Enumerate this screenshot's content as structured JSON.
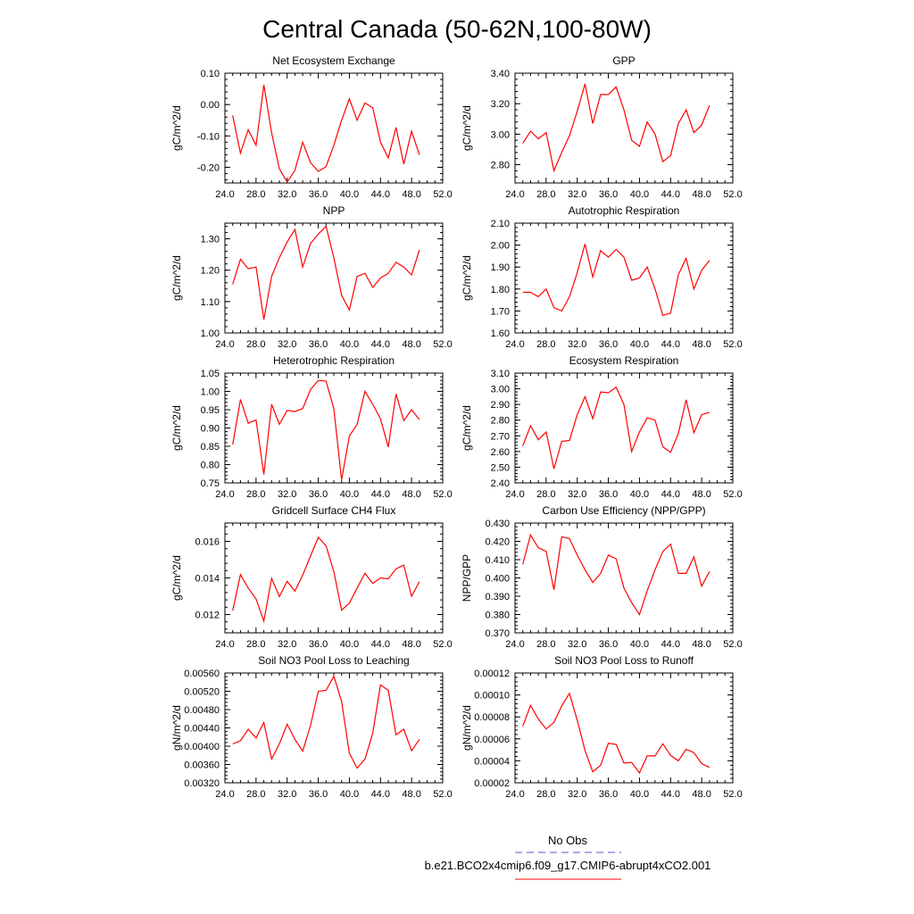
{
  "title": "Central Canada (50-62N,100-80W)",
  "legend": {
    "entries": [
      {
        "label": "No Obs",
        "color": "#5555cc",
        "style": "dashed"
      },
      {
        "label": "b.e21.BCO2x4cmip6.f09_g17.CMIP6-abrupt4xCO2.001",
        "color": "#ff0000",
        "style": "solid"
      }
    ]
  },
  "chart_data": [
    {
      "type": "line",
      "title": "Net Ecosystem Exchange",
      "ylabel": "gC/m^2/d",
      "xlim": [
        24,
        52
      ],
      "ylim": [
        -0.25,
        0.1
      ],
      "xticks": [
        "24.0",
        "28.0",
        "32.0",
        "36.0",
        "40.0",
        "44.0",
        "48.0",
        "52.0"
      ],
      "yticks": [
        {
          "v": 0.1,
          "t": "0.10"
        },
        {
          "v": 0.0,
          "t": "0.00"
        },
        {
          "v": -0.1,
          "t": "-0.10"
        },
        {
          "v": -0.2,
          "t": "-0.20"
        }
      ],
      "series": [
        {
          "color": "#ff0000",
          "x": [
            25,
            26,
            27,
            28,
            29,
            30,
            31,
            32,
            33,
            34,
            35,
            36,
            37,
            38,
            39,
            40,
            41,
            42,
            43,
            44,
            45,
            46,
            47,
            48,
            49
          ],
          "y": [
            -0.035,
            -0.155,
            -0.08,
            -0.13,
            0.063,
            -0.09,
            -0.205,
            -0.247,
            -0.21,
            -0.12,
            -0.185,
            -0.213,
            -0.198,
            -0.13,
            -0.05,
            0.018,
            -0.05,
            0.005,
            -0.01,
            -0.12,
            -0.17,
            -0.073,
            -0.19,
            -0.085,
            -0.16
          ]
        }
      ]
    },
    {
      "type": "line",
      "title": "GPP",
      "ylabel": "gC/m^2/d",
      "xlim": [
        24,
        52
      ],
      "ylim": [
        2.68,
        3.4
      ],
      "xticks": [
        "24.0",
        "28.0",
        "32.0",
        "36.0",
        "40.0",
        "44.0",
        "48.0",
        "52.0"
      ],
      "yticks": [
        {
          "v": 3.4,
          "t": "3.40"
        },
        {
          "v": 3.2,
          "t": "3.20"
        },
        {
          "v": 3.0,
          "t": "3.00"
        },
        {
          "v": 2.8,
          "t": "2.80"
        }
      ],
      "series": [
        {
          "color": "#ff0000",
          "x": [
            25,
            26,
            27,
            28,
            29,
            30,
            31,
            32,
            33,
            34,
            35,
            36,
            37,
            38,
            39,
            40,
            41,
            42,
            43,
            44,
            45,
            46,
            47,
            48,
            49
          ],
          "y": [
            2.94,
            3.02,
            2.97,
            3.01,
            2.76,
            2.88,
            2.99,
            3.15,
            3.33,
            3.07,
            3.26,
            3.26,
            3.31,
            3.16,
            2.96,
            2.92,
            3.08,
            3.0,
            2.82,
            2.86,
            3.07,
            3.16,
            3.01,
            3.06,
            3.19
          ]
        }
      ]
    },
    {
      "type": "line",
      "title": "NPP",
      "ylabel": "gC/m^2/d",
      "xlim": [
        24,
        52
      ],
      "ylim": [
        1.0,
        1.35
      ],
      "xticks": [
        "24.0",
        "28.0",
        "32.0",
        "36.0",
        "40.0",
        "44.0",
        "48.0",
        "52.0"
      ],
      "yticks": [
        {
          "v": 1.3,
          "t": "1.30"
        },
        {
          "v": 1.2,
          "t": "1.20"
        },
        {
          "v": 1.1,
          "t": "1.10"
        },
        {
          "v": 1.0,
          "t": "1.00"
        }
      ],
      "series": [
        {
          "color": "#ff0000",
          "x": [
            25,
            26,
            27,
            28,
            29,
            30,
            31,
            32,
            33,
            34,
            35,
            36,
            37,
            38,
            39,
            40,
            41,
            42,
            43,
            44,
            45,
            46,
            47,
            48,
            49
          ],
          "y": [
            1.155,
            1.235,
            1.205,
            1.21,
            1.042,
            1.18,
            1.24,
            1.29,
            1.33,
            1.21,
            1.285,
            1.315,
            1.34,
            1.24,
            1.12,
            1.073,
            1.18,
            1.19,
            1.145,
            1.175,
            1.19,
            1.225,
            1.21,
            1.185,
            1.265
          ]
        }
      ]
    },
    {
      "type": "line",
      "title": "Autotrophic Respiration",
      "ylabel": "gC/m^2/d",
      "xlim": [
        24,
        52
      ],
      "ylim": [
        1.6,
        2.1
      ],
      "xticks": [
        "24.0",
        "28.0",
        "32.0",
        "36.0",
        "40.0",
        "44.0",
        "48.0",
        "52.0"
      ],
      "yticks": [
        {
          "v": 2.1,
          "t": "2.10"
        },
        {
          "v": 2.0,
          "t": "2.00"
        },
        {
          "v": 1.9,
          "t": "1.90"
        },
        {
          "v": 1.8,
          "t": "1.80"
        },
        {
          "v": 1.7,
          "t": "1.70"
        },
        {
          "v": 1.6,
          "t": "1.60"
        }
      ],
      "series": [
        {
          "color": "#ff0000",
          "x": [
            25,
            26,
            27,
            28,
            29,
            30,
            31,
            32,
            33,
            34,
            35,
            36,
            37,
            38,
            39,
            40,
            41,
            42,
            43,
            44,
            45,
            46,
            47,
            48,
            49
          ],
          "y": [
            1.785,
            1.785,
            1.765,
            1.8,
            1.715,
            1.7,
            1.765,
            1.875,
            2.005,
            1.855,
            1.975,
            1.945,
            1.98,
            1.945,
            1.84,
            1.85,
            1.9,
            1.8,
            1.68,
            1.69,
            1.865,
            1.94,
            1.8,
            1.885,
            1.93
          ]
        }
      ]
    },
    {
      "type": "line",
      "title": "Heterotrophic Respiration",
      "ylabel": "gC/m^2/d",
      "xlim": [
        24,
        52
      ],
      "ylim": [
        0.75,
        1.05
      ],
      "xticks": [
        "24.0",
        "28.0",
        "32.0",
        "36.0",
        "40.0",
        "44.0",
        "48.0",
        "52.0"
      ],
      "yticks": [
        {
          "v": 1.05,
          "t": "1.05"
        },
        {
          "v": 1.0,
          "t": "1.00"
        },
        {
          "v": 0.95,
          "t": "0.95"
        },
        {
          "v": 0.9,
          "t": "0.90"
        },
        {
          "v": 0.85,
          "t": "0.85"
        },
        {
          "v": 0.8,
          "t": "0.80"
        },
        {
          "v": 0.75,
          "t": "0.75"
        }
      ],
      "series": [
        {
          "color": "#ff0000",
          "x": [
            25,
            26,
            27,
            28,
            29,
            30,
            31,
            32,
            33,
            34,
            35,
            36,
            37,
            38,
            39,
            40,
            41,
            42,
            43,
            44,
            45,
            46,
            47,
            48,
            49
          ],
          "y": [
            0.855,
            0.978,
            0.913,
            0.922,
            0.773,
            0.965,
            0.91,
            0.948,
            0.945,
            0.953,
            1.005,
            1.03,
            1.028,
            0.953,
            0.758,
            0.878,
            0.91,
            1.0,
            0.965,
            0.925,
            0.848,
            0.993,
            0.92,
            0.95,
            0.923
          ]
        }
      ]
    },
    {
      "type": "line",
      "title": "Ecosystem Respiration",
      "ylabel": "gC/m^2/d",
      "xlim": [
        24,
        52
      ],
      "ylim": [
        2.4,
        3.1
      ],
      "xticks": [
        "24.0",
        "28.0",
        "32.0",
        "36.0",
        "40.0",
        "44.0",
        "48.0",
        "52.0"
      ],
      "yticks": [
        {
          "v": 3.1,
          "t": "3.10"
        },
        {
          "v": 3.0,
          "t": "3.00"
        },
        {
          "v": 2.9,
          "t": "2.90"
        },
        {
          "v": 2.8,
          "t": "2.80"
        },
        {
          "v": 2.7,
          "t": "2.70"
        },
        {
          "v": 2.6,
          "t": "2.60"
        },
        {
          "v": 2.5,
          "t": "2.50"
        },
        {
          "v": 2.4,
          "t": "2.40"
        }
      ],
      "series": [
        {
          "color": "#ff0000",
          "x": [
            25,
            26,
            27,
            28,
            29,
            30,
            31,
            32,
            33,
            34,
            35,
            36,
            37,
            38,
            39,
            40,
            41,
            42,
            43,
            44,
            45,
            46,
            47,
            48,
            49
          ],
          "y": [
            2.635,
            2.765,
            2.675,
            2.725,
            2.49,
            2.665,
            2.67,
            2.835,
            2.95,
            2.81,
            2.98,
            2.975,
            3.01,
            2.9,
            2.6,
            2.725,
            2.815,
            2.8,
            2.63,
            2.595,
            2.715,
            2.93,
            2.72,
            2.835,
            2.85
          ]
        }
      ]
    },
    {
      "type": "line",
      "title": "Gridcell Surface CH4 Flux",
      "ylabel": "gC/m^2/d",
      "xlim": [
        24,
        52
      ],
      "ylim": [
        0.011,
        0.017
      ],
      "xticks": [
        "24.0",
        "28.0",
        "32.0",
        "36.0",
        "40.0",
        "44.0",
        "48.0",
        "52.0"
      ],
      "yticks": [
        {
          "v": 0.016,
          "t": "0.016"
        },
        {
          "v": 0.014,
          "t": "0.014"
        },
        {
          "v": 0.012,
          "t": "0.012"
        }
      ],
      "series": [
        {
          "color": "#ff0000",
          "x": [
            25,
            26,
            27,
            28,
            29,
            30,
            31,
            32,
            33,
            34,
            35,
            36,
            37,
            38,
            39,
            40,
            41,
            42,
            43,
            44,
            45,
            46,
            47,
            48,
            49
          ],
          "y": [
            0.01222,
            0.01418,
            0.01345,
            0.01285,
            0.01164,
            0.01398,
            0.01298,
            0.01382,
            0.01328,
            0.01415,
            0.0152,
            0.01622,
            0.01575,
            0.01435,
            0.01224,
            0.01262,
            0.01345,
            0.01425,
            0.0137,
            0.014,
            0.01395,
            0.0145,
            0.0147,
            0.013,
            0.0138
          ]
        }
      ]
    },
    {
      "type": "line",
      "title": "Carbon Use Efficiency (NPP/GPP)",
      "ylabel": "NPP/GPP",
      "xlim": [
        24,
        52
      ],
      "ylim": [
        0.37,
        0.43
      ],
      "xticks": [
        "24.0",
        "28.0",
        "32.0",
        "36.0",
        "40.0",
        "44.0",
        "48.0",
        "52.0"
      ],
      "yticks": [
        {
          "v": 0.43,
          "t": "0.430"
        },
        {
          "v": 0.42,
          "t": "0.420"
        },
        {
          "v": 0.41,
          "t": "0.410"
        },
        {
          "v": 0.4,
          "t": "0.400"
        },
        {
          "v": 0.39,
          "t": "0.390"
        },
        {
          "v": 0.38,
          "t": "0.380"
        },
        {
          "v": 0.37,
          "t": "0.370"
        }
      ],
      "series": [
        {
          "color": "#ff0000",
          "x": [
            25,
            26,
            27,
            28,
            29,
            30,
            31,
            32,
            33,
            34,
            35,
            36,
            37,
            38,
            39,
            40,
            41,
            42,
            43,
            44,
            45,
            46,
            47,
            48,
            49
          ],
          "y": [
            0.4075,
            0.4235,
            0.4165,
            0.4145,
            0.3935,
            0.4225,
            0.4215,
            0.4125,
            0.4045,
            0.3975,
            0.4025,
            0.4125,
            0.4105,
            0.3945,
            0.3865,
            0.38,
            0.393,
            0.4045,
            0.4145,
            0.4185,
            0.4025,
            0.4025,
            0.4115,
            0.3955,
            0.4035
          ]
        }
      ]
    },
    {
      "type": "line",
      "title": "Soil NO3 Pool Loss to Leaching",
      "ylabel": "gN/m^2/d",
      "xlim": [
        24,
        52
      ],
      "ylim": [
        0.0032,
        0.0056
      ],
      "xticks": [
        "24.0",
        "28.0",
        "32.0",
        "36.0",
        "40.0",
        "44.0",
        "48.0",
        "52.0"
      ],
      "yticks": [
        {
          "v": 0.0056,
          "t": "0.00560"
        },
        {
          "v": 0.0052,
          "t": "0.00520"
        },
        {
          "v": 0.0048,
          "t": "0.00480"
        },
        {
          "v": 0.0044,
          "t": "0.00440"
        },
        {
          "v": 0.004,
          "t": "0.00400"
        },
        {
          "v": 0.0036,
          "t": "0.00360"
        },
        {
          "v": 0.0032,
          "t": "0.00320"
        }
      ],
      "series": [
        {
          "color": "#ff0000",
          "x": [
            25,
            26,
            27,
            28,
            29,
            30,
            31,
            32,
            33,
            34,
            35,
            36,
            37,
            38,
            39,
            40,
            41,
            42,
            43,
            44,
            45,
            46,
            47,
            48,
            49
          ],
          "y": [
            0.00405,
            0.00412,
            0.00437,
            0.00418,
            0.00452,
            0.00372,
            0.00405,
            0.00448,
            0.00415,
            0.00389,
            0.00445,
            0.0052,
            0.00522,
            0.00553,
            0.00498,
            0.00385,
            0.00352,
            0.00372,
            0.00428,
            0.00534,
            0.00522,
            0.00425,
            0.00437,
            0.0039,
            0.00415
          ]
        }
      ]
    },
    {
      "type": "line",
      "title": "Soil NO3 Pool Loss to Runoff",
      "ylabel": "gN/m^2/d",
      "xlim": [
        24,
        52
      ],
      "ylim": [
        2e-05,
        0.00012
      ],
      "xticks": [
        "24.0",
        "28.0",
        "32.0",
        "36.0",
        "40.0",
        "44.0",
        "48.0",
        "52.0"
      ],
      "yticks": [
        {
          "v": 0.00012,
          "t": "0.00012"
        },
        {
          "v": 0.0001,
          "t": "0.00010"
        },
        {
          "v": 8e-05,
          "t": "0.00008"
        },
        {
          "v": 6e-05,
          "t": "0.00006"
        },
        {
          "v": 4e-05,
          "t": "0.00004"
        },
        {
          "v": 2e-05,
          "t": "0.00002"
        }
      ],
      "series": [
        {
          "color": "#ff0000",
          "x": [
            25,
            26,
            27,
            28,
            29,
            30,
            31,
            32,
            33,
            34,
            35,
            36,
            37,
            38,
            39,
            40,
            41,
            42,
            43,
            44,
            45,
            46,
            47,
            48,
            49
          ],
          "y": [
            7.15e-05,
            9.05e-05,
            7.8e-05,
            6.9e-05,
            7.5e-05,
            9e-05,
            0.0001015,
            7.7e-05,
            4.95e-05,
            3e-05,
            3.6e-05,
            5.6e-05,
            5.5e-05,
            3.8e-05,
            3.85e-05,
            2.9e-05,
            4.45e-05,
            4.45e-05,
            5.55e-05,
            4.5e-05,
            4e-05,
            5.05e-05,
            4.75e-05,
            3.75e-05,
            3.4e-05
          ]
        }
      ]
    }
  ]
}
